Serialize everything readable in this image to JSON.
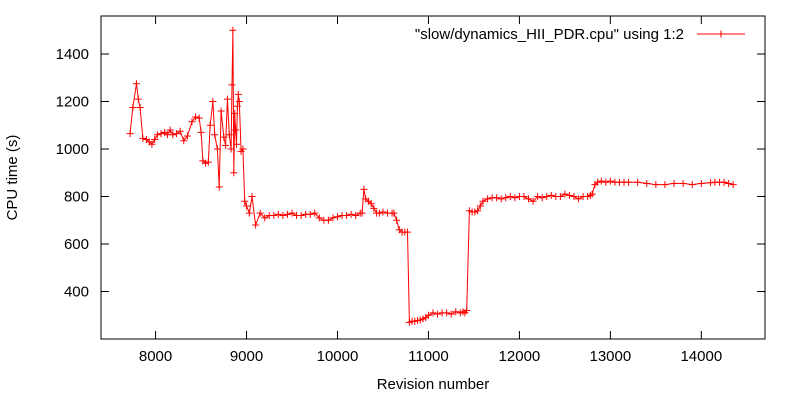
{
  "chart_data": {
    "type": "line",
    "title": "",
    "xlabel": "Revision number",
    "ylabel": "CPU time (s)",
    "xlim": [
      7400,
      14700
    ],
    "ylim": [
      200,
      1560
    ],
    "x_ticks": [
      8000,
      9000,
      10000,
      11000,
      12000,
      13000,
      14000
    ],
    "y_ticks": [
      400,
      600,
      800,
      1000,
      1200,
      1400
    ],
    "grid": false,
    "legend": {
      "position": "top-right",
      "entries": [
        "\"slow/dynamics_HII_PDR.cpu\" using 1:2"
      ]
    },
    "colors": {
      "series": "#ff0000",
      "axis": "#000000"
    },
    "series": [
      {
        "name": "\"slow/dynamics_HII_PDR.cpu\" using 1:2",
        "marker": "plus",
        "x": [
          7720,
          7750,
          7790,
          7810,
          7830,
          7860,
          7900,
          7930,
          7960,
          7990,
          8020,
          8060,
          8100,
          8130,
          8160,
          8190,
          8230,
          8270,
          8310,
          8350,
          8400,
          8440,
          8480,
          8500,
          8520,
          8550,
          8580,
          8600,
          8630,
          8650,
          8680,
          8700,
          8720,
          8750,
          8770,
          8790,
          8810,
          8830,
          8840,
          8850,
          8860,
          8870,
          8880,
          8890,
          8900,
          8910,
          8920,
          8940,
          8960,
          8980,
          9000,
          9030,
          9060,
          9100,
          9150,
          9200,
          9250,
          9300,
          9350,
          9400,
          9450,
          9500,
          9550,
          9600,
          9650,
          9700,
          9750,
          9800,
          9850,
          9900,
          9950,
          10000,
          10050,
          10100,
          10150,
          10200,
          10250,
          10270,
          10290,
          10310,
          10340,
          10370,
          10400,
          10430,
          10460,
          10500,
          10550,
          10600,
          10620,
          10650,
          10680,
          10710,
          10740,
          10770,
          10790,
          10820,
          10850,
          10880,
          10910,
          10940,
          10970,
          11000,
          11050,
          11100,
          11150,
          11200,
          11250,
          11300,
          11350,
          11380,
          11400,
          11420,
          11450,
          11480,
          11510,
          11540,
          11570,
          11600,
          11650,
          11700,
          11750,
          11800,
          11850,
          11900,
          11950,
          12000,
          12050,
          12100,
          12150,
          12200,
          12250,
          12300,
          12350,
          12400,
          12450,
          12500,
          12550,
          12600,
          12650,
          12700,
          12750,
          12780,
          12800,
          12830,
          12860,
          12900,
          12950,
          13000,
          13050,
          13100,
          13150,
          13200,
          13300,
          13400,
          13500,
          13600,
          13700,
          13800,
          13900,
          14000,
          14100,
          14150,
          14200,
          14250,
          14300,
          14350
        ],
        "y": [
          1065,
          1175,
          1275,
          1210,
          1175,
          1045,
          1040,
          1030,
          1020,
          1040,
          1060,
          1065,
          1070,
          1060,
          1080,
          1060,
          1065,
          1075,
          1035,
          1055,
          1115,
          1135,
          1130,
          1070,
          950,
          940,
          945,
          1100,
          1200,
          1060,
          1000,
          840,
          1160,
          1050,
          1015,
          1210,
          1060,
          1000,
          1270,
          1500,
          900,
          1150,
          1080,
          1020,
          1180,
          1230,
          1200,
          990,
          1000,
          780,
          760,
          730,
          800,
          680,
          730,
          710,
          720,
          720,
          725,
          720,
          725,
          730,
          720,
          720,
          725,
          725,
          730,
          710,
          700,
          700,
          710,
          715,
          720,
          720,
          725,
          720,
          730,
          730,
          830,
          790,
          780,
          770,
          750,
          730,
          730,
          735,
          730,
          730,
          730,
          700,
          660,
          650,
          650,
          650,
          270,
          275,
          275,
          278,
          280,
          285,
          290,
          300,
          310,
          305,
          310,
          310,
          305,
          315,
          310,
          315,
          310,
          320,
          740,
          735,
          735,
          740,
          760,
          780,
          790,
          795,
          795,
          790,
          795,
          800,
          795,
          800,
          800,
          790,
          780,
          800,
          795,
          800,
          805,
          800,
          800,
          810,
          805,
          800,
          790,
          800,
          800,
          805,
          810,
          850,
          860,
          865,
          860,
          865,
          860,
          860,
          860,
          860,
          860,
          855,
          850,
          850,
          855,
          855,
          850,
          855,
          858,
          860,
          860,
          860,
          855,
          850
        ]
      }
    ]
  }
}
